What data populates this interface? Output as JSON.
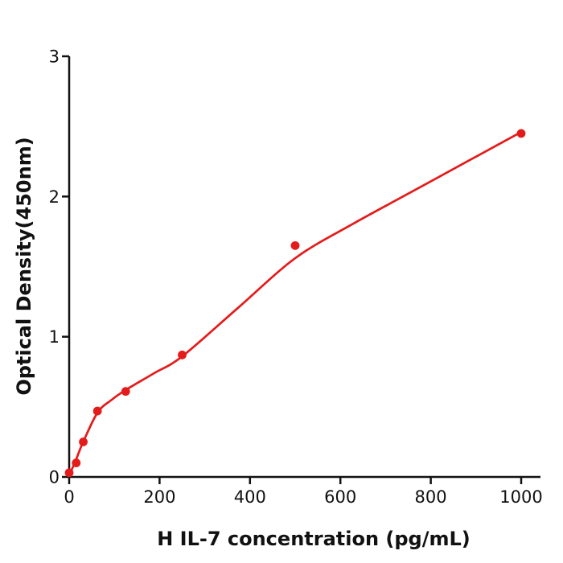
{
  "chart_data": {
    "type": "scatter",
    "title": "",
    "xlabel": "H  IL-7 concentration (pg/mL)",
    "ylabel": "Optical Density(450nm)",
    "xlim": [
      0,
      1043
    ],
    "ylim": [
      0,
      3
    ],
    "x_ticks": [
      0,
      200,
      400,
      600,
      800,
      1000
    ],
    "y_ticks": [
      0,
      1,
      2,
      3
    ],
    "grid": false,
    "legend": "none",
    "series": [
      {
        "name": "standards",
        "kind": "points",
        "points": [
          {
            "x": 0,
            "y": 0.03
          },
          {
            "x": 15.6,
            "y": 0.1
          },
          {
            "x": 31.25,
            "y": 0.25
          },
          {
            "x": 62.5,
            "y": 0.47
          },
          {
            "x": 125,
            "y": 0.61
          },
          {
            "x": 250,
            "y": 0.87
          },
          {
            "x": 500,
            "y": 1.65
          },
          {
            "x": 1000,
            "y": 2.45
          }
        ]
      },
      {
        "name": "fit-curve",
        "kind": "smooth-line",
        "points": [
          {
            "x": 0,
            "y": 0.01
          },
          {
            "x": 16,
            "y": 0.13
          },
          {
            "x": 31,
            "y": 0.25
          },
          {
            "x": 63,
            "y": 0.46
          },
          {
            "x": 94,
            "y": 0.55
          },
          {
            "x": 125,
            "y": 0.62
          },
          {
            "x": 188,
            "y": 0.74
          },
          {
            "x": 250,
            "y": 0.86
          },
          {
            "x": 375,
            "y": 1.21
          },
          {
            "x": 500,
            "y": 1.56
          },
          {
            "x": 625,
            "y": 1.8
          },
          {
            "x": 750,
            "y": 2.02
          },
          {
            "x": 875,
            "y": 2.24
          },
          {
            "x": 1000,
            "y": 2.46
          }
        ]
      }
    ],
    "colors": {
      "series": "#e41b1b",
      "axis": "#111111",
      "background": "#ffffff"
    }
  }
}
